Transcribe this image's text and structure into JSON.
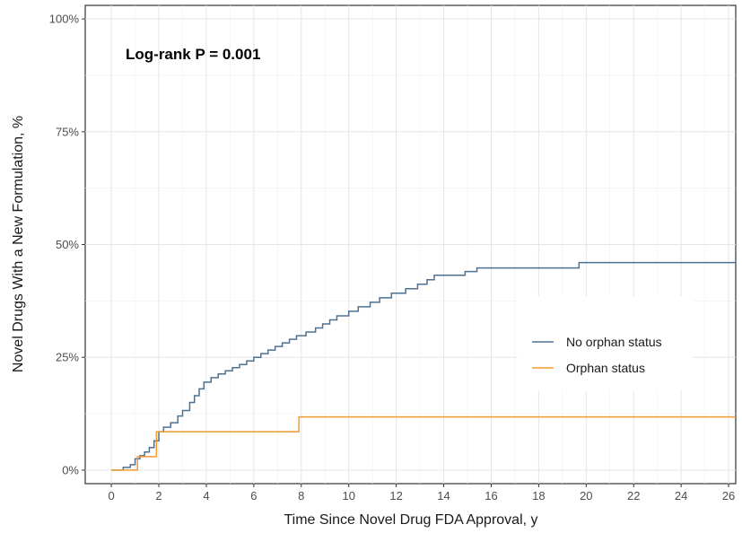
{
  "chart_data": {
    "type": "line",
    "step": true,
    "xlabel": "Time Since Novel Drug FDA Approval, y",
    "ylabel": "Novel Drugs With a New Formulation, %",
    "annotation": "Log-rank P = 0.001",
    "xlim": [
      -1.1,
      26.3
    ],
    "ylim": [
      -3,
      103
    ],
    "x_ticks": [
      0,
      2,
      4,
      6,
      8,
      10,
      12,
      14,
      16,
      18,
      20,
      22,
      24,
      26
    ],
    "y_ticks": [
      0,
      25,
      50,
      75,
      100
    ],
    "y_tick_labels": [
      "0%",
      "25%",
      "50%",
      "75%",
      "100%"
    ],
    "grid": true,
    "legend_position": "right",
    "series": [
      {
        "name": "No orphan status",
        "color": "#4e7191",
        "points": [
          [
            0,
            0
          ],
          [
            0.5,
            0
          ],
          [
            0.5,
            0.6
          ],
          [
            0.8,
            0.6
          ],
          [
            0.8,
            1.2
          ],
          [
            1.0,
            1.2
          ],
          [
            1.0,
            2.5
          ],
          [
            1.2,
            2.5
          ],
          [
            1.2,
            3.2
          ],
          [
            1.4,
            3.2
          ],
          [
            1.4,
            4.0
          ],
          [
            1.6,
            4.0
          ],
          [
            1.6,
            5.0
          ],
          [
            1.8,
            5.0
          ],
          [
            1.8,
            6.5
          ],
          [
            2.0,
            6.5
          ],
          [
            2.0,
            8.5
          ],
          [
            2.2,
            8.5
          ],
          [
            2.2,
            9.5
          ],
          [
            2.5,
            9.5
          ],
          [
            2.5,
            10.5
          ],
          [
            2.8,
            10.5
          ],
          [
            2.8,
            12.0
          ],
          [
            3.0,
            12.0
          ],
          [
            3.0,
            13.2
          ],
          [
            3.3,
            13.2
          ],
          [
            3.3,
            15.0
          ],
          [
            3.5,
            15.0
          ],
          [
            3.5,
            16.5
          ],
          [
            3.7,
            16.5
          ],
          [
            3.7,
            18.0
          ],
          [
            3.9,
            18.0
          ],
          [
            3.9,
            19.5
          ],
          [
            4.2,
            19.5
          ],
          [
            4.2,
            20.5
          ],
          [
            4.5,
            20.5
          ],
          [
            4.5,
            21.3
          ],
          [
            4.8,
            21.3
          ],
          [
            4.8,
            22.0
          ],
          [
            5.1,
            22.0
          ],
          [
            5.1,
            22.7
          ],
          [
            5.4,
            22.7
          ],
          [
            5.4,
            23.4
          ],
          [
            5.7,
            23.4
          ],
          [
            5.7,
            24.2
          ],
          [
            6.0,
            24.2
          ],
          [
            6.0,
            25.0
          ],
          [
            6.3,
            25.0
          ],
          [
            6.3,
            25.8
          ],
          [
            6.6,
            25.8
          ],
          [
            6.6,
            26.6
          ],
          [
            6.9,
            26.6
          ],
          [
            6.9,
            27.4
          ],
          [
            7.2,
            27.4
          ],
          [
            7.2,
            28.2
          ],
          [
            7.5,
            28.2
          ],
          [
            7.5,
            29.0
          ],
          [
            7.8,
            29.0
          ],
          [
            7.8,
            29.8
          ],
          [
            8.2,
            29.8
          ],
          [
            8.2,
            30.6
          ],
          [
            8.6,
            30.6
          ],
          [
            8.6,
            31.5
          ],
          [
            8.9,
            31.5
          ],
          [
            8.9,
            32.4
          ],
          [
            9.2,
            32.4
          ],
          [
            9.2,
            33.3
          ],
          [
            9.5,
            33.3
          ],
          [
            9.5,
            34.2
          ],
          [
            10.0,
            34.2
          ],
          [
            10.0,
            35.2
          ],
          [
            10.4,
            35.2
          ],
          [
            10.4,
            36.2
          ],
          [
            10.9,
            36.2
          ],
          [
            10.9,
            37.2
          ],
          [
            11.3,
            37.2
          ],
          [
            11.3,
            38.2
          ],
          [
            11.8,
            38.2
          ],
          [
            11.8,
            39.2
          ],
          [
            12.4,
            39.2
          ],
          [
            12.4,
            40.2
          ],
          [
            12.9,
            40.2
          ],
          [
            12.9,
            41.2
          ],
          [
            13.3,
            41.2
          ],
          [
            13.3,
            42.2
          ],
          [
            13.6,
            42.2
          ],
          [
            13.6,
            43.2
          ],
          [
            14.9,
            43.2
          ],
          [
            14.9,
            44.0
          ],
          [
            15.4,
            44.0
          ],
          [
            15.4,
            44.8
          ],
          [
            19.7,
            44.8
          ],
          [
            19.7,
            46.0
          ],
          [
            26.3,
            46.0
          ]
        ]
      },
      {
        "name": "Orphan status",
        "color": "#f39b2e",
        "points": [
          [
            0,
            0
          ],
          [
            1.1,
            0
          ],
          [
            1.1,
            3.0
          ],
          [
            1.9,
            3.0
          ],
          [
            1.9,
            8.5
          ],
          [
            7.9,
            8.5
          ],
          [
            7.9,
            11.8
          ],
          [
            26.3,
            11.8
          ]
        ]
      }
    ]
  }
}
